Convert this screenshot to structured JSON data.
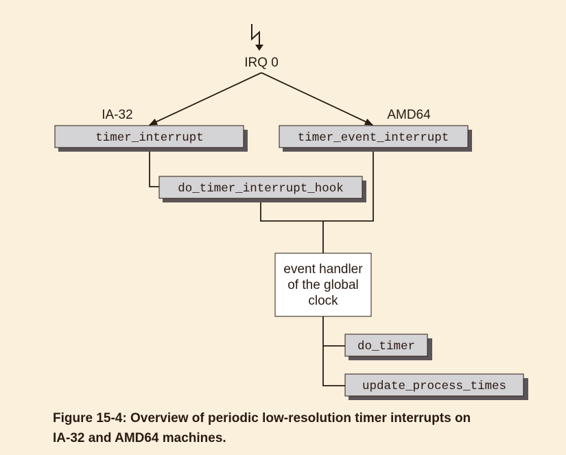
{
  "diagram": {
    "source": "IRQ 0",
    "branch_left": "IA-32",
    "branch_right": "AMD64",
    "nodes": {
      "timer_interrupt": "timer_interrupt",
      "timer_event_interrupt": "timer_event_interrupt",
      "do_timer_interrupt_hook": "do_timer_interrupt_hook",
      "event_handler": [
        "event handler",
        "of the global",
        "clock"
      ],
      "do_timer": "do_timer",
      "update_process_times": "update_process_times"
    },
    "edges": [
      {
        "from": "IRQ 0",
        "to": "timer_interrupt",
        "arrow": true
      },
      {
        "from": "IRQ 0",
        "to": "timer_event_interrupt",
        "arrow": true
      },
      {
        "from": "timer_interrupt",
        "to": "do_timer_interrupt_hook"
      },
      {
        "from": "do_timer_interrupt_hook",
        "to": "event handler of the global clock"
      },
      {
        "from": "timer_event_interrupt",
        "to": "event handler of the global clock"
      },
      {
        "from": "event handler of the global clock",
        "to": "do_timer"
      },
      {
        "from": "event handler of the global clock",
        "to": "update_process_times"
      }
    ],
    "colors": {
      "background": "#fbf0dc",
      "code_box_fill": "#d4d3d6",
      "shadow": "#5c5558",
      "line": "#2a1a12",
      "handler_box_fill": "#ffffff"
    }
  },
  "caption": {
    "line1": "Figure 15-4: Overview of periodic low-resolution timer interrupts on",
    "line2": "IA-32 and AMD64 machines."
  }
}
